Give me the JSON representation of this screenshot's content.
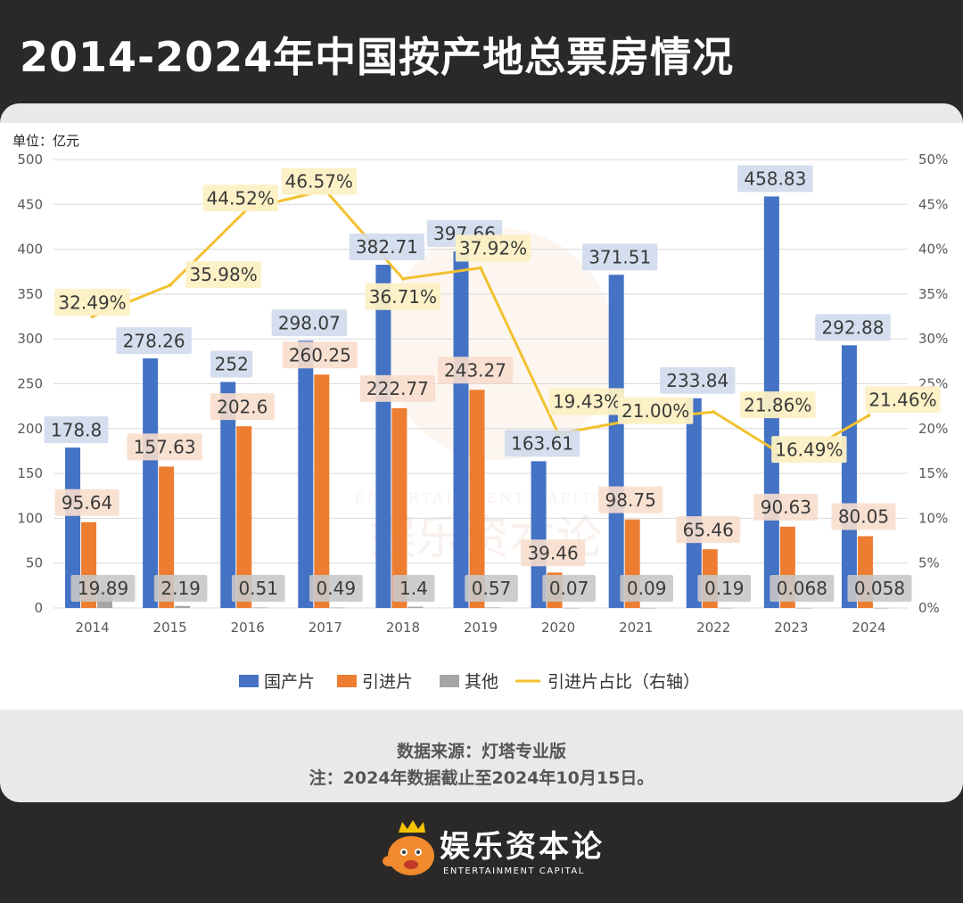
{
  "page": {
    "title": "2014-2024年中国按产地总票房情况"
  },
  "chart_data": {
    "type": "bar",
    "unit_label": "单位：亿元",
    "categories": [
      "2014",
      "2015",
      "2016",
      "2017",
      "2018",
      "2019",
      "2020",
      "2021",
      "2022",
      "2023",
      "2024"
    ],
    "series": [
      {
        "name": "国产片",
        "kind": "bar",
        "axis": "left",
        "color": "#4472c4",
        "values": [
          178.8,
          278.26,
          252,
          298.07,
          382.71,
          397.66,
          163.61,
          371.51,
          233.84,
          458.83,
          292.88
        ],
        "labels": [
          "178.8",
          "278.26",
          "252",
          "298.07",
          "382.71",
          "397.66",
          "163.61",
          "371.51",
          "233.84",
          "458.83",
          "292.88"
        ]
      },
      {
        "name": "引进片",
        "kind": "bar",
        "axis": "left",
        "color": "#ed7d31",
        "values": [
          95.64,
          157.63,
          202.6,
          260.25,
          222.77,
          243.27,
          39.46,
          98.75,
          65.46,
          90.63,
          80.05
        ],
        "labels": [
          "95.64",
          "157.63",
          "202.6",
          "260.25",
          "222.77",
          "243.27",
          "39.46",
          "98.75",
          "65.46",
          "90.63",
          "80.05"
        ]
      },
      {
        "name": "其他",
        "kind": "bar",
        "axis": "left",
        "color": "#a5a5a5",
        "values": [
          19.89,
          2.19,
          0.51,
          0.49,
          1.4,
          0.57,
          0.07,
          0.09,
          0.19,
          0.068,
          0.058
        ],
        "labels": [
          "19.89",
          "2.19",
          "0.51",
          "0.49",
          "1.4",
          "0.57",
          "0.07",
          "0.09",
          "0.19",
          "0.068",
          "0.058"
        ]
      },
      {
        "name": "引进片占比（右轴）",
        "kind": "line",
        "axis": "right",
        "color": "#f2c12e",
        "values": [
          32.49,
          35.98,
          44.52,
          46.57,
          36.71,
          37.92,
          19.43,
          21.0,
          21.86,
          16.49,
          21.46
        ],
        "labels": [
          "32.49%",
          "35.98%",
          "44.52%",
          "46.57%",
          "36.71%",
          "37.92%",
          "19.43%",
          "21.00%",
          "21.86%",
          "16.49%",
          "21.46%"
        ]
      }
    ],
    "y_left": {
      "min": 0,
      "max": 500,
      "ticks": [
        "0",
        "50",
        "100",
        "150",
        "200",
        "250",
        "300",
        "350",
        "400",
        "450",
        "500"
      ]
    },
    "y_right": {
      "min": 0,
      "max": 50,
      "ticks": [
        "0%",
        "5%",
        "10%",
        "15%",
        "20%",
        "25%",
        "30%",
        "35%",
        "40%",
        "45%",
        "50%"
      ]
    },
    "gridlines": true,
    "legend_position": "bottom"
  },
  "footer": {
    "source": "数据来源：灯塔专业版",
    "note": "注：2024年数据截止至2024年10月15日。"
  },
  "brand": {
    "name": "娱乐资本论",
    "subtitle": "ENTERTAINMENT CAPITAL",
    "watermark_name": "娱乐资本论",
    "watermark_subtitle": "ENTERTAINMENT CAPITAL"
  }
}
